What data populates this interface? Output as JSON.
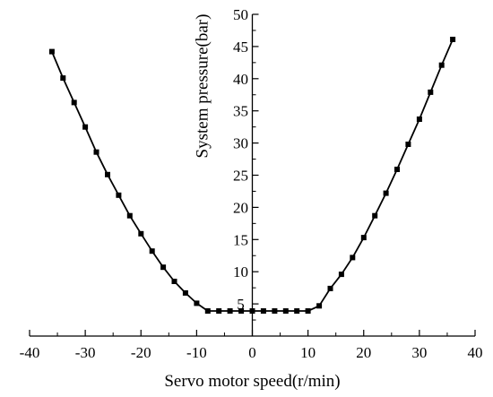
{
  "chart_data": {
    "type": "line",
    "title": "",
    "xlabel": "Servo motor speed(r/min)",
    "ylabel": "System pressure(bar)",
    "xlim": [
      -40,
      40
    ],
    "ylim": [
      0,
      50
    ],
    "xticks": [
      -40,
      -30,
      -20,
      -10,
      0,
      10,
      20,
      30,
      40
    ],
    "yticks": [
      5,
      10,
      15,
      20,
      25,
      30,
      35,
      40,
      45,
      50
    ],
    "grid": false,
    "legend": "none",
    "series": [
      {
        "color": "#000000",
        "marker": "square",
        "x": [
          -36,
          -34,
          -32,
          -30,
          -28,
          -26,
          -24,
          -22,
          -20,
          -18,
          -16,
          -14,
          -12,
          -10,
          -8,
          -6,
          -4,
          -2,
          0,
          2,
          4,
          6,
          8,
          10,
          12,
          14,
          16,
          18,
          20,
          22,
          24,
          26,
          28,
          30,
          32,
          34,
          36
        ],
        "y": [
          44.2,
          40.1,
          36.3,
          32.5,
          28.6,
          25.1,
          21.9,
          18.7,
          15.9,
          13.2,
          10.7,
          8.5,
          6.7,
          5.1,
          3.9,
          3.9,
          3.9,
          3.9,
          3.9,
          3.9,
          3.9,
          3.9,
          3.9,
          3.9,
          4.7,
          7.4,
          9.6,
          12.2,
          15.3,
          18.7,
          22.2,
          25.9,
          29.8,
          33.7,
          37.9,
          42.1,
          46.1
        ]
      }
    ]
  }
}
